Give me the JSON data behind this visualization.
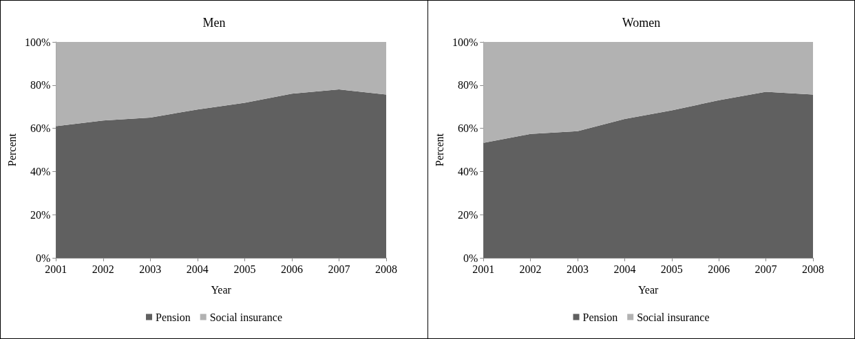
{
  "chart_data": [
    {
      "type": "area",
      "title": "Men",
      "xlabel": "Year",
      "ylabel": "Percent",
      "stacked": true,
      "categories": [
        "2001",
        "2002",
        "2003",
        "2004",
        "2005",
        "2006",
        "2007",
        "2008"
      ],
      "series": [
        {
          "name": "Pension",
          "color": "#606060",
          "values": [
            61,
            63.6,
            65,
            68.7,
            71.8,
            76,
            78,
            75.6
          ]
        },
        {
          "name": "Social insurance",
          "color": "#b2b2b2",
          "values": [
            39,
            36.4,
            35,
            31.3,
            28.2,
            24,
            22,
            24.4
          ]
        }
      ],
      "ylim": [
        0,
        100
      ],
      "yticks": [
        {
          "value": 0,
          "label": "0%"
        },
        {
          "value": 20,
          "label": "20%"
        },
        {
          "value": 40,
          "label": "40%"
        },
        {
          "value": 60,
          "label": "60%"
        },
        {
          "value": 80,
          "label": "80%"
        },
        {
          "value": 100,
          "label": "100%"
        }
      ],
      "grid": false,
      "legend": "bottom"
    },
    {
      "type": "area",
      "title": "Women",
      "xlabel": "Year",
      "ylabel": "Percent",
      "stacked": true,
      "categories": [
        "2001",
        "2002",
        "2003",
        "2004",
        "2005",
        "2006",
        "2007",
        "2008"
      ],
      "series": [
        {
          "name": "Pension",
          "color": "#606060",
          "values": [
            53.3,
            57.4,
            58.7,
            64.3,
            68.3,
            73,
            76.9,
            75.6
          ]
        },
        {
          "name": "Social insurance",
          "color": "#b2b2b2",
          "values": [
            46.7,
            42.6,
            41.3,
            35.7,
            31.7,
            27,
            23.1,
            24.4
          ]
        }
      ],
      "ylim": [
        0,
        100
      ],
      "yticks": [
        {
          "value": 0,
          "label": "0%"
        },
        {
          "value": 20,
          "label": "20%"
        },
        {
          "value": 40,
          "label": "40%"
        },
        {
          "value": 60,
          "label": "60%"
        },
        {
          "value": 80,
          "label": "80%"
        },
        {
          "value": 100,
          "label": "100%"
        }
      ],
      "grid": false,
      "legend": "bottom"
    }
  ]
}
